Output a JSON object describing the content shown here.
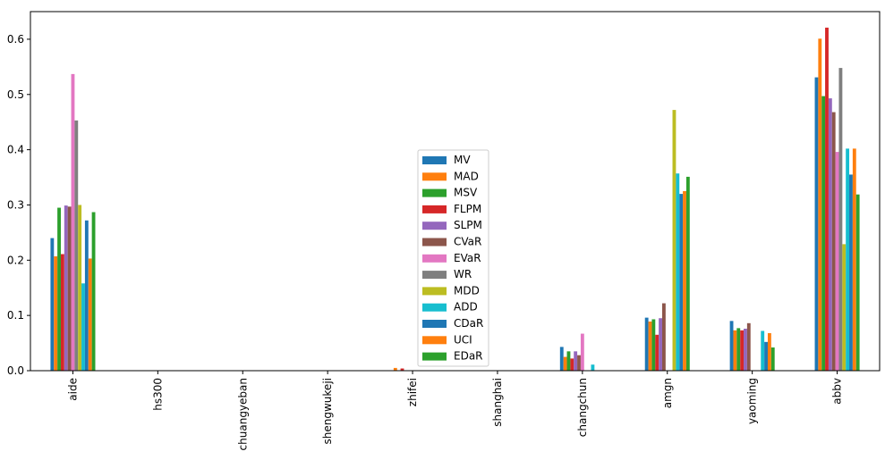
{
  "chart_data": {
    "type": "bar",
    "categories": [
      "aide",
      "hs300",
      "chuangyeban",
      "shengwukeji",
      "zhifei",
      "shanghai",
      "changchun",
      "amgn",
      "yaoming",
      "abbv"
    ],
    "ylim": [
      0,
      0.65
    ],
    "yticks": [
      "0.0",
      "0.1",
      "0.2",
      "0.3",
      "0.4",
      "0.5",
      "0.6"
    ],
    "grid": false,
    "legend_position": "center",
    "series": [
      {
        "name": "MV",
        "color": "#1f77b4",
        "values": [
          0.24,
          0,
          0,
          0,
          0,
          0,
          0.043,
          0.096,
          0.09,
          0.531
        ]
      },
      {
        "name": "MAD",
        "color": "#ff7f0e",
        "values": [
          0.207,
          0,
          0,
          0,
          0.005,
          0,
          0.025,
          0.089,
          0.073,
          0.601
        ]
      },
      {
        "name": "MSV",
        "color": "#2ca02c",
        "values": [
          0.295,
          0,
          0,
          0,
          0,
          0,
          0.035,
          0.093,
          0.077,
          0.497
        ]
      },
      {
        "name": "FLPM",
        "color": "#d62728",
        "values": [
          0.211,
          0,
          0,
          0,
          0.004,
          0,
          0.022,
          0.065,
          0.073,
          0.621
        ]
      },
      {
        "name": "SLPM",
        "color": "#9467bd",
        "values": [
          0.299,
          0,
          0,
          0,
          0,
          0,
          0.035,
          0.095,
          0.076,
          0.493
        ]
      },
      {
        "name": "CVaR",
        "color": "#8c564b",
        "values": [
          0.297,
          0,
          0,
          0,
          0,
          0,
          0.028,
          0.122,
          0.086,
          0.468
        ]
      },
      {
        "name": "EVaR",
        "color": "#e377c2",
        "values": [
          0.537,
          0,
          0,
          0,
          0,
          0,
          0.067,
          0,
          0,
          0.396
        ]
      },
      {
        "name": "WR",
        "color": "#7f7f7f",
        "values": [
          0.453,
          0,
          0,
          0,
          0,
          0,
          0,
          0,
          0,
          0.548
        ]
      },
      {
        "name": "MDD",
        "color": "#bcbd22",
        "values": [
          0.3,
          0,
          0,
          0,
          0,
          0,
          0,
          0.472,
          0,
          0.229
        ]
      },
      {
        "name": "ADD",
        "color": "#17becf",
        "values": [
          0.158,
          0,
          0,
          0,
          0,
          0,
          0.011,
          0.357,
          0.072,
          0.402
        ]
      },
      {
        "name": "CDaR",
        "color": "#1f77b4",
        "values": [
          0.272,
          0,
          0,
          0,
          0,
          0,
          0,
          0.32,
          0.052,
          0.355
        ]
      },
      {
        "name": "UCI",
        "color": "#ff7f0e",
        "values": [
          0.203,
          0,
          0,
          0,
          0,
          0,
          0,
          0.325,
          0.068,
          0.402
        ]
      },
      {
        "name": "EDaR",
        "color": "#2ca02c",
        "values": [
          0.287,
          0,
          0,
          0,
          0,
          0,
          0,
          0.351,
          0.042,
          0.319
        ]
      }
    ]
  }
}
